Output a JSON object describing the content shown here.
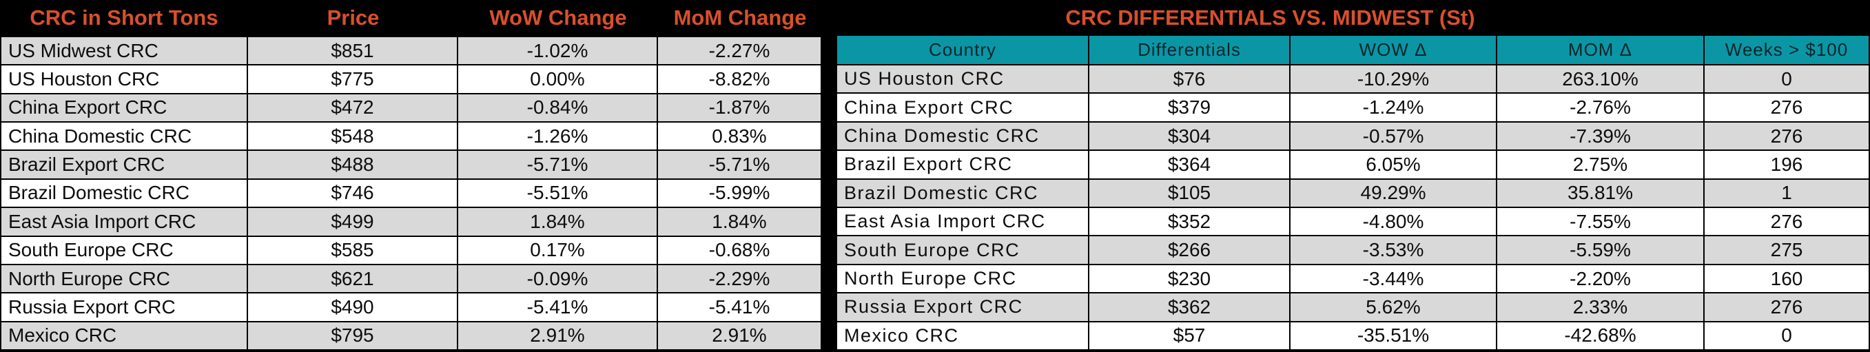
{
  "colors": {
    "background": "#000000",
    "header_text_orange": "#D8502C",
    "teal_header": "#0B96A5",
    "row_gray": "#D9D9D9",
    "row_white": "#FFFFFF",
    "body_text": "#0d0d0d"
  },
  "chart_data": [
    {
      "type": "table",
      "title": "CRC in Short Tons",
      "columns": [
        "CRC in Short Tons",
        "Price",
        "WoW Change",
        "MoM Change"
      ],
      "rows": [
        [
          "US Midwest CRC",
          "$851",
          "-1.02%",
          "-2.27%"
        ],
        [
          "US Houston CRC",
          "$775",
          "0.00%",
          "-8.82%"
        ],
        [
          "China Export CRC",
          "$472",
          "-0.84%",
          "-1.87%"
        ],
        [
          "China Domestic CRC",
          "$548",
          "-1.26%",
          "0.83%"
        ],
        [
          "Brazil Export CRC",
          "$488",
          "-5.71%",
          "-5.71%"
        ],
        [
          "Brazil Domestic CRC",
          "$746",
          "-5.51%",
          "-5.99%"
        ],
        [
          "East Asia Import CRC",
          "$499",
          "1.84%",
          "1.84%"
        ],
        [
          "South Europe CRC",
          "$585",
          "0.17%",
          "-0.68%"
        ],
        [
          "North Europe CRC",
          "$621",
          "-0.09%",
          "-2.29%"
        ],
        [
          "Russia Export CRC",
          "$490",
          "-5.41%",
          "-5.41%"
        ],
        [
          "Mexico CRC",
          "$795",
          "2.91%",
          "2.91%"
        ]
      ],
      "layout": {
        "striping": "first row gray, alternating white",
        "header_style": "orange bold on black"
      }
    },
    {
      "type": "table",
      "title": "CRC DIFFERENTIALS VS. MIDWEST (St)",
      "columns": [
        "Country",
        "Differentials",
        "WOW Δ",
        "MOM Δ",
        "Weeks > $100"
      ],
      "rows": [
        [
          "US Houston CRC",
          "$76",
          "-10.29%",
          "263.10%",
          "0"
        ],
        [
          "China Export CRC",
          "$379",
          "-1.24%",
          "-2.76%",
          "276"
        ],
        [
          "China Domestic CRC",
          "$304",
          "-0.57%",
          "-7.39%",
          "276"
        ],
        [
          "Brazil Export CRC",
          "$364",
          "6.05%",
          "2.75%",
          "196"
        ],
        [
          "Brazil Domestic CRC",
          "$105",
          "49.29%",
          "35.81%",
          "1"
        ],
        [
          "East Asia Import CRC",
          "$352",
          "-4.80%",
          "-7.55%",
          "276"
        ],
        [
          "South Europe CRC",
          "$266",
          "-3.53%",
          "-5.59%",
          "275"
        ],
        [
          "North Europe CRC",
          "$230",
          "-3.44%",
          "-2.20%",
          "160"
        ],
        [
          "Russia Export CRC",
          "$362",
          "5.62%",
          "2.33%",
          "276"
        ],
        [
          "Mexico CRC",
          "$57",
          "-35.51%",
          "-42.68%",
          "0"
        ]
      ],
      "layout": {
        "striping": "first row gray, alternating white",
        "header_style": "orange bold title on black, teal column header row with black text"
      }
    }
  ]
}
